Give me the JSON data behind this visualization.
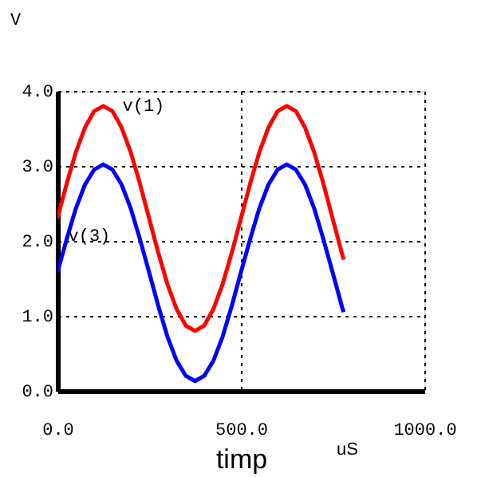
{
  "chart_data": {
    "type": "line",
    "xlabel": "timp",
    "ylabel": "V",
    "annotations": [
      "uS"
    ],
    "x": [
      0,
      25,
      50,
      75,
      100,
      125,
      150,
      175,
      200,
      225,
      250,
      275,
      300,
      325,
      350,
      375,
      400,
      425,
      450,
      475,
      500,
      525,
      550,
      575,
      600,
      625,
      650,
      675,
      700,
      725,
      750,
      775,
      780
    ],
    "series": [
      {
        "name": "v(1)",
        "color": "#ff0000",
        "values": [
          2.3,
          2.76,
          3.18,
          3.51,
          3.73,
          3.8,
          3.73,
          3.51,
          3.18,
          2.76,
          2.3,
          1.84,
          1.42,
          1.09,
          0.87,
          0.8,
          0.87,
          1.09,
          1.42,
          1.84,
          2.3,
          2.76,
          3.18,
          3.51,
          3.73,
          3.8,
          3.73,
          3.51,
          3.18,
          2.76,
          2.3,
          1.84,
          1.75
        ]
      },
      {
        "name": "v(3)",
        "color": "#0000ff",
        "values": [
          1.58,
          2.02,
          2.43,
          2.75,
          2.95,
          3.02,
          2.95,
          2.75,
          2.43,
          2.02,
          1.58,
          1.13,
          0.72,
          0.4,
          0.2,
          0.13,
          0.2,
          0.4,
          0.72,
          1.13,
          1.58,
          2.02,
          2.43,
          2.75,
          2.95,
          3.02,
          2.95,
          2.75,
          2.43,
          2.02,
          1.58,
          1.13,
          1.05
        ]
      }
    ],
    "xlim": [
      0,
      1000
    ],
    "xticks": [
      {
        "value": 0,
        "label": "0.0"
      },
      {
        "value": 500,
        "label": "500.0"
      },
      {
        "value": 1000,
        "label": "1000.0"
      }
    ],
    "ylim": [
      0,
      4
    ],
    "yticks": [
      {
        "value": 0,
        "label": "0.0"
      },
      {
        "value": 1,
        "label": "1.0"
      },
      {
        "value": 2,
        "label": "2.0"
      },
      {
        "value": 3,
        "label": "3.0"
      },
      {
        "value": 4,
        "label": "4.0"
      }
    ],
    "grid": true,
    "marker": "none",
    "line_style": "solid"
  }
}
